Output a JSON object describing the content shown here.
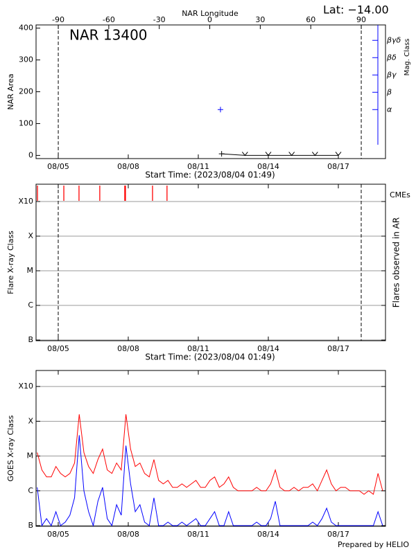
{
  "chart_data": [
    {
      "type": "line",
      "title": "NAR 13400",
      "annotation": "Lat: −14.00",
      "x2label": "NAR Longitude",
      "xlabel": "Start Time: (2023/08/04 01:49)",
      "ylabel": "NAR Area",
      "y2label": "Mag. Class",
      "xlim": [
        4.05,
        19.02
      ],
      "xticks": [
        {
          "value": 5,
          "label": "08/05"
        },
        {
          "value": 8,
          "label": "08/08"
        },
        {
          "value": 11,
          "label": "08/11"
        },
        {
          "value": 14,
          "label": "08/14"
        },
        {
          "value": 17,
          "label": "08/17"
        }
      ],
      "x2lim": [
        -103.2,
        104.4
      ],
      "x2ticks": [
        -90,
        -60,
        -30,
        0,
        30,
        60,
        90
      ],
      "vlines_x2": [
        -90,
        90
      ],
      "ylim": [
        -10,
        410
      ],
      "yticks": [
        0,
        100,
        200,
        300,
        400
      ],
      "y2lim": [
        -1.83,
        5.89
      ],
      "y2ticks": [
        {
          "value": 1,
          "label": "α"
        },
        {
          "value": 2,
          "label": "β"
        },
        {
          "value": 3,
          "label": "βγ"
        },
        {
          "value": 4,
          "label": "βδ"
        },
        {
          "value": 5,
          "label": "βγδ"
        }
      ],
      "y2color": "#0000ff",
      "series": [
        {
          "color": "#000000",
          "x": [
            12,
            13,
            14,
            15,
            16,
            17
          ],
          "values": [
            5,
            0,
            0,
            0,
            0,
            0
          ],
          "markers": [
            "+",
            "v",
            "v",
            "v",
            "v",
            "v"
          ]
        },
        {
          "color": "#0000ff",
          "axis": "y2",
          "x": [
            11.95
          ],
          "values": [
            1
          ],
          "markers": [
            "+"
          ]
        }
      ]
    },
    {
      "type": "event",
      "xlabel": "Start Time: (2023/08/04 01:49)",
      "ylabel": "Flare X-ray Class",
      "y2label": "Flares observed in AR",
      "xlim": [
        4.05,
        19.02
      ],
      "xticks": [
        {
          "value": 5,
          "label": "08/05"
        },
        {
          "value": 8,
          "label": "08/08"
        },
        {
          "value": 11,
          "label": "08/11"
        },
        {
          "value": 14,
          "label": "08/14"
        },
        {
          "value": 17,
          "label": "08/17"
        }
      ],
      "ylim": [
        -7.02,
        -2.5
      ],
      "yticks": [
        {
          "value": -7,
          "label": "B"
        },
        {
          "value": -6,
          "label": "C"
        },
        {
          "value": -5,
          "label": "M"
        },
        {
          "value": -4,
          "label": "X"
        },
        {
          "value": -3,
          "label": "X10"
        }
      ],
      "grid": true,
      "vlines": [
        5.0,
        17.98
      ],
      "cmes": {
        "name": "CMEs",
        "color": "#ff0000",
        "x": [
          4.11,
          5.24,
          5.89,
          6.78,
          7.85,
          7.88,
          9.04,
          9.66
        ]
      }
    },
    {
      "type": "line",
      "ylabel": "GOES X-ray Class",
      "footer": "Prepared by HELIO",
      "xlim": [
        4.05,
        19.02
      ],
      "xticks": [
        {
          "value": 5,
          "label": "08/05"
        },
        {
          "value": 8,
          "label": "08/08"
        },
        {
          "value": 11,
          "label": "08/11"
        },
        {
          "value": 14,
          "label": "08/14"
        },
        {
          "value": 17,
          "label": "08/17"
        }
      ],
      "ylim": [
        -7.02,
        -2.54
      ],
      "yticks": [
        {
          "value": -7,
          "label": "B"
        },
        {
          "value": -6,
          "label": "C"
        },
        {
          "value": -5,
          "label": "M"
        },
        {
          "value": -4,
          "label": "X"
        },
        {
          "value": -3,
          "label": "X10"
        }
      ],
      "grid": true,
      "x": [
        4.1,
        4.3,
        4.5,
        4.7,
        4.9,
        5.1,
        5.3,
        5.5,
        5.7,
        5.9,
        6.1,
        6.3,
        6.5,
        6.7,
        6.9,
        7.1,
        7.3,
        7.5,
        7.7,
        7.9,
        8.1,
        8.3,
        8.5,
        8.7,
        8.9,
        9.1,
        9.3,
        9.5,
        9.7,
        9.9,
        10.1,
        10.3,
        10.5,
        10.7,
        10.9,
        11.1,
        11.3,
        11.5,
        11.7,
        11.9,
        12.1,
        12.3,
        12.5,
        12.7,
        12.9,
        13.1,
        13.3,
        13.5,
        13.7,
        13.9,
        14.1,
        14.3,
        14.5,
        14.7,
        14.9,
        15.1,
        15.3,
        15.5,
        15.7,
        15.9,
        16.1,
        16.3,
        16.5,
        16.7,
        16.9,
        17.1,
        17.3,
        17.5,
        17.7,
        17.9,
        18.1,
        18.3,
        18.5,
        18.7,
        18.9
      ],
      "series": [
        {
          "color": "#ff0000",
          "values": [
            -4.9,
            -5.4,
            -5.6,
            -5.6,
            -5.3,
            -5.5,
            -5.6,
            -5.5,
            -5.2,
            -3.8,
            -4.9,
            -5.3,
            -5.5,
            -5.1,
            -4.8,
            -5.4,
            -5.5,
            -5.2,
            -5.4,
            -3.8,
            -4.8,
            -5.3,
            -5.2,
            -5.5,
            -5.6,
            -5.1,
            -5.7,
            -5.8,
            -5.7,
            -5.9,
            -5.9,
            -5.8,
            -5.9,
            -5.8,
            -5.7,
            -5.9,
            -5.9,
            -5.7,
            -5.6,
            -5.9,
            -5.8,
            -5.6,
            -5.9,
            -6.0,
            -6.0,
            -6.0,
            -6.0,
            -5.9,
            -6.0,
            -6.0,
            -5.8,
            -5.4,
            -5.9,
            -6.0,
            -6.0,
            -5.9,
            -6.0,
            -5.9,
            -5.9,
            -5.8,
            -6.0,
            -5.7,
            -5.4,
            -5.8,
            -6.0,
            -5.9,
            -5.9,
            -6.0,
            -6.0,
            -6.0,
            -6.1,
            -6.0,
            -6.1,
            -5.5,
            -6.0
          ]
        },
        {
          "color": "#0000ff",
          "values": [
            -5.9,
            -7.0,
            -6.8,
            -7.0,
            -6.6,
            -7.0,
            -6.9,
            -6.7,
            -6.2,
            -4.4,
            -6.0,
            -6.6,
            -7.0,
            -6.3,
            -5.9,
            -6.8,
            -7.0,
            -6.4,
            -6.7,
            -4.7,
            -5.8,
            -6.6,
            -6.4,
            -6.9,
            -7.0,
            -6.2,
            -7.0,
            -7.0,
            -6.9,
            -7.0,
            -7.0,
            -6.9,
            -7.0,
            -6.9,
            -6.8,
            -7.0,
            -7.0,
            -6.8,
            -6.6,
            -7.0,
            -7.0,
            -6.6,
            -7.0,
            -7.0,
            -7.0,
            -7.0,
            -7.0,
            -6.9,
            -7.0,
            -7.0,
            -6.8,
            -6.3,
            -7.0,
            -7.0,
            -7.0,
            -7.0,
            -7.0,
            -7.0,
            -7.0,
            -6.9,
            -7.0,
            -6.8,
            -6.5,
            -6.9,
            -7.0,
            -7.0,
            -7.0,
            -7.0,
            -7.0,
            -7.0,
            -7.0,
            -7.0,
            -7.0,
            -6.6,
            -7.0
          ]
        }
      ]
    }
  ]
}
